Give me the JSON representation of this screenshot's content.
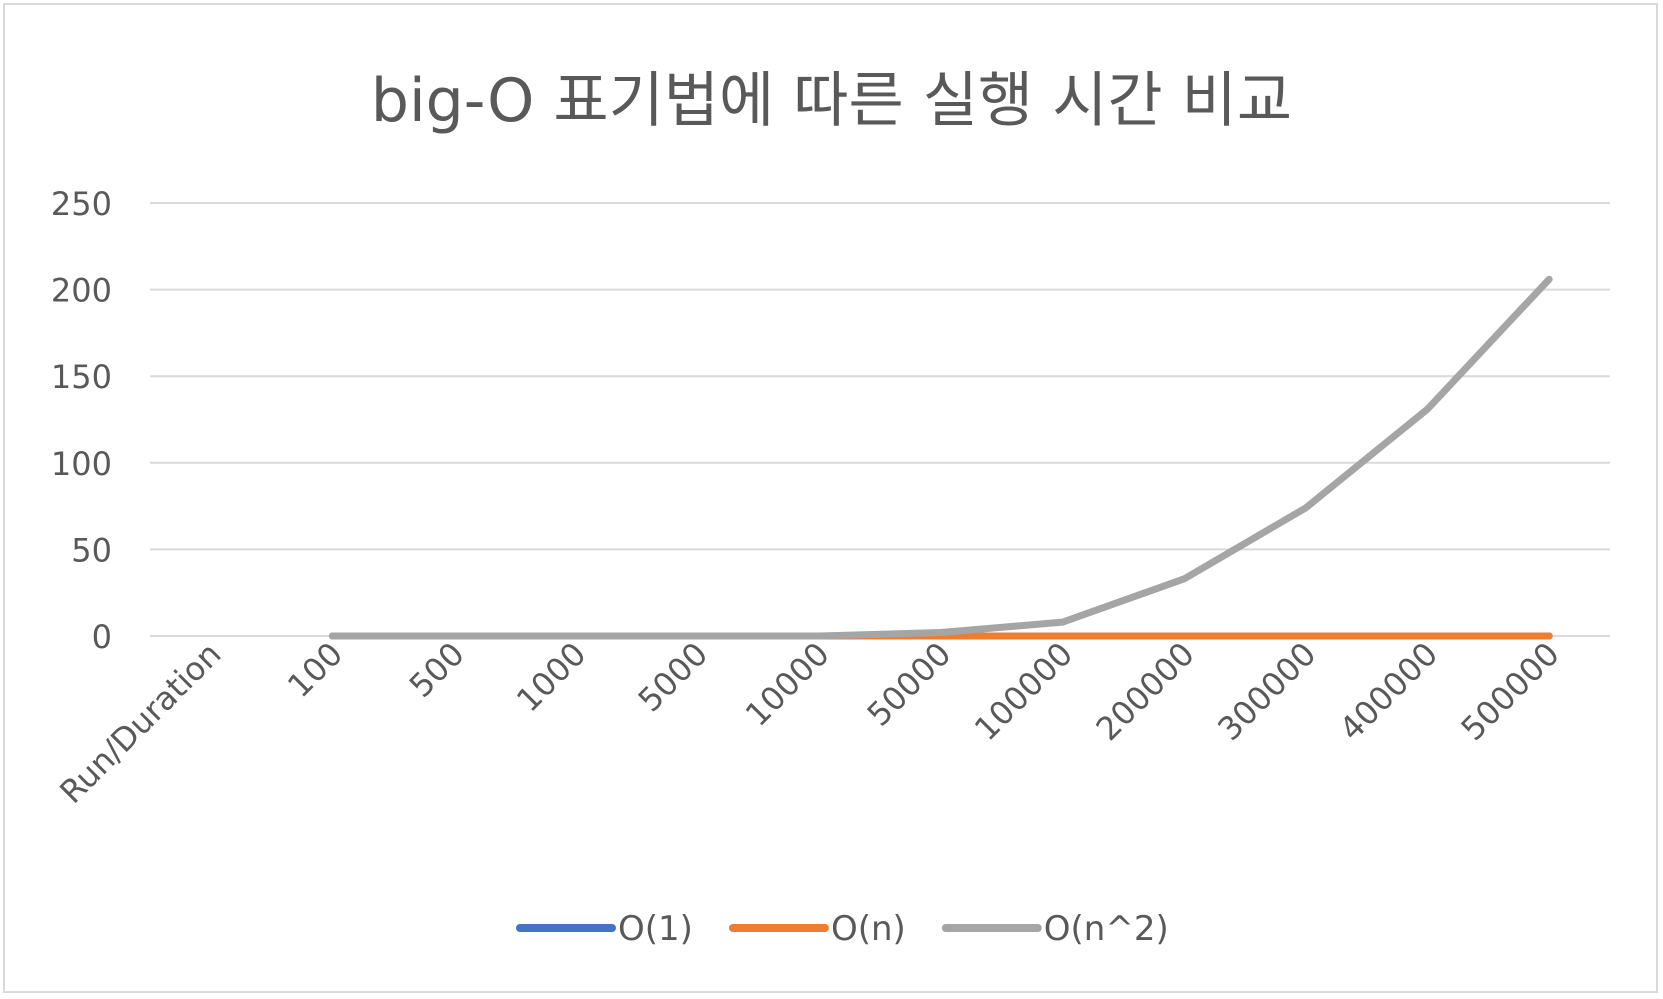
{
  "chart_data": {
    "type": "line",
    "title": "big-O 표기법에 따른 실행 시간 비교",
    "categories": [
      "Run/Duration",
      "100",
      "500",
      "1000",
      "5000",
      "10000",
      "50000",
      "100000",
      "200000",
      "300000",
      "400000",
      "500000"
    ],
    "series": [
      {
        "name": "O(1)",
        "color": "#4472c4",
        "values": [
          null,
          0,
          0,
          0,
          0,
          0,
          0,
          0,
          0,
          0,
          0,
          0
        ]
      },
      {
        "name": "O(n)",
        "color": "#ed7d31",
        "values": [
          null,
          0,
          0,
          0,
          0,
          0,
          0,
          0,
          0,
          0,
          0,
          0
        ]
      },
      {
        "name": "O(n^2)",
        "color": "#a5a5a5",
        "values": [
          null,
          0,
          0,
          0,
          0,
          0,
          2,
          8,
          33,
          74,
          131,
          206
        ]
      }
    ],
    "yticks": [
      0,
      50,
      100,
      150,
      200,
      250
    ],
    "ylim": [
      0,
      250
    ],
    "grid": true,
    "legend_position": "bottom"
  }
}
